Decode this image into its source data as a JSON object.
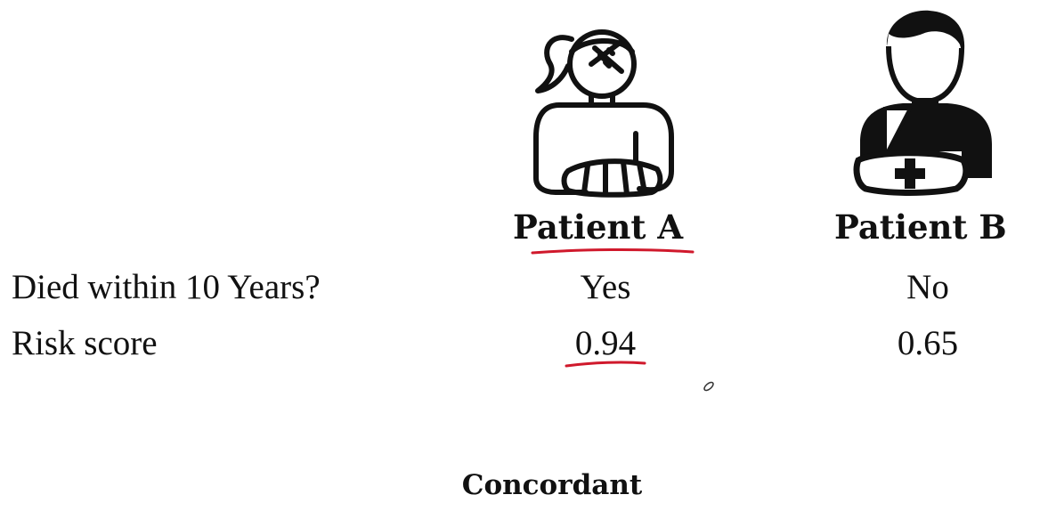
{
  "patients": [
    {
      "label": "Patient A",
      "icon": "woman-broken-arm-icon",
      "died_within_10_years": "Yes",
      "risk_score": "0.94"
    },
    {
      "label": "Patient B",
      "icon": "man-arm-sling-icon",
      "died_within_10_years": "No",
      "risk_score": "0.65"
    }
  ],
  "rows": {
    "died_label": "Died within 10 Years?",
    "risk_label": "Risk score"
  },
  "conclusion": "Concordant",
  "colors": {
    "text": "#111111",
    "annotation_ink": "#d0192c"
  }
}
